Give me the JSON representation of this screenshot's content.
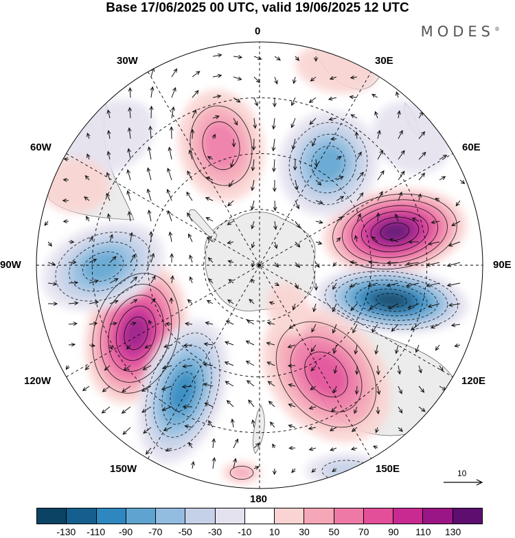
{
  "title": "Base 17/06/2025 00 UTC, valid 19/06/2025 12 UTC",
  "brand": "MODES",
  "brand_mark": "®",
  "longitude_labels": {
    "top": "0",
    "e30": "30E",
    "e60": "60E",
    "e90": "90E",
    "e120": "120E",
    "e150": "150E",
    "bottom": "180",
    "w150": "150W",
    "w120": "120W",
    "w90": "90W",
    "w60": "60W",
    "w30": "30W"
  },
  "vector_scale": {
    "label": "10"
  },
  "colorbar": {
    "colors": [
      "#0b4365",
      "#155f8f",
      "#2e87bf",
      "#5fa4d0",
      "#93bde0",
      "#c5d1e8",
      "#e5e2ef",
      "#ffffff",
      "#f9d4d2",
      "#f5a7b7",
      "#ee79a6",
      "#e34f98",
      "#c82a91",
      "#9a1585",
      "#5d0e6f"
    ],
    "ticks": [
      "-130",
      "-110",
      "-90",
      "-70",
      "-50",
      "-30",
      "-10",
      "10",
      "30",
      "50",
      "70",
      "90",
      "110",
      "130"
    ]
  },
  "map_colors": {
    "land": "#ececec",
    "coast": "#666666",
    "ocean": "#ffffff"
  }
}
